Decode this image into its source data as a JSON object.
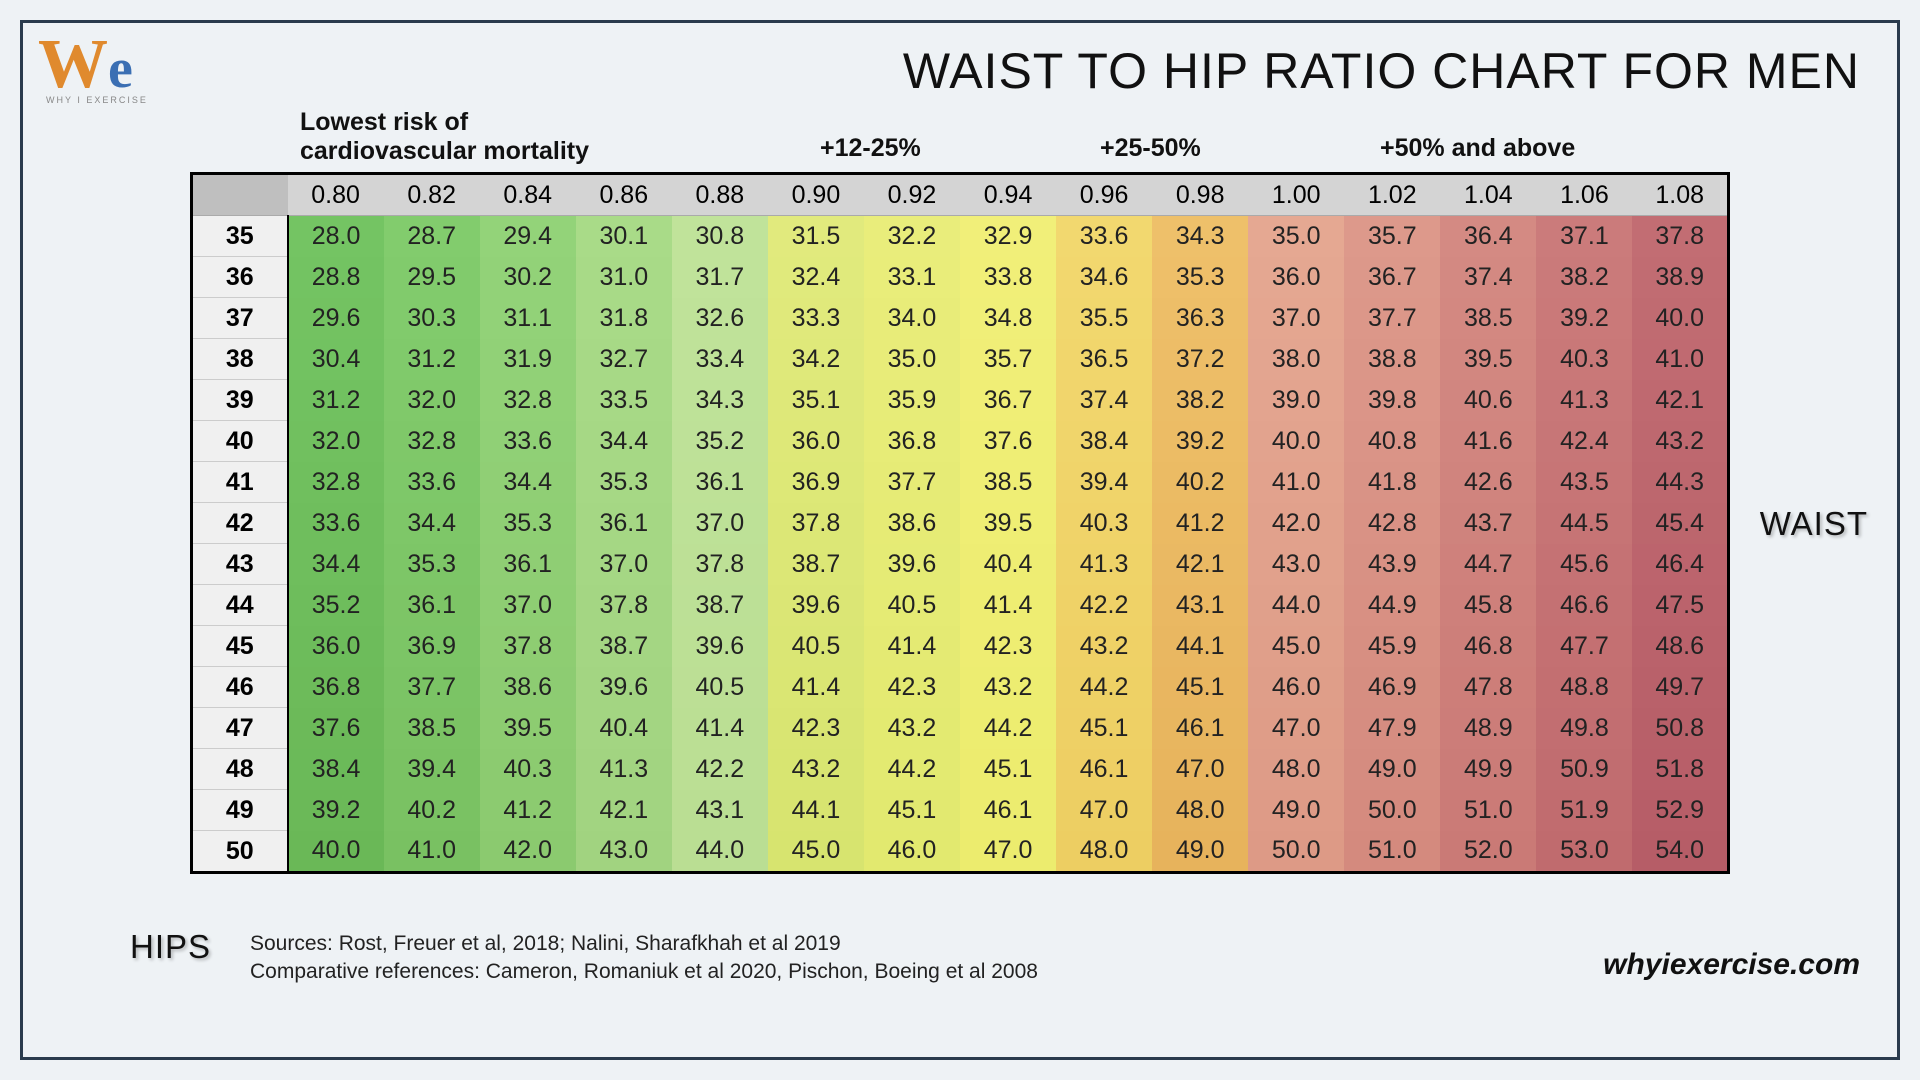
{
  "logo": {
    "w": "W",
    "e": "e",
    "sub": "WHY I EXERCISE"
  },
  "title": "WAIST TO HIP RATIO CHART FOR MEN",
  "risk_labels": {
    "lowest_line1": "Lowest risk of",
    "lowest_line2": "cardiovascular mortality",
    "r12": "+12-25%",
    "r25": "+25-50%",
    "r50": "+50% and above"
  },
  "waist_label": "WAIST",
  "hips_label": "HIPS",
  "sources_line1": "Sources:  Rost, Freuer et al, 2018; Nalini, Sharafkhah et al 2019",
  "sources_line2": "Comparative references:  Cameron, Romaniuk et al 2020, Pischon, Boeing et al 2008",
  "site": "whyiexercise.com",
  "chart": {
    "type": "table-heatmap",
    "ratio_headers": [
      "0.80",
      "0.82",
      "0.84",
      "0.86",
      "0.88",
      "0.90",
      "0.92",
      "0.94",
      "0.96",
      "0.98",
      "1.00",
      "1.02",
      "1.04",
      "1.06",
      "1.08"
    ],
    "hip_headers": [
      "35",
      "36",
      "37",
      "38",
      "39",
      "40",
      "41",
      "42",
      "43",
      "44",
      "45",
      "46",
      "47",
      "48",
      "49",
      "50"
    ],
    "column_colors_top": [
      "#74c463",
      "#82cc6d",
      "#93d379",
      "#a9db88",
      "#c0e39a",
      "#e1ea7d",
      "#e9ed7b",
      "#f1ef79",
      "#f2d86f",
      "#eec06a",
      "#e5a892",
      "#dd998b",
      "#d48a83",
      "#cb7b7b",
      "#c26d73"
    ],
    "column_colors_bottom": [
      "#6ab857",
      "#79c162",
      "#8bca6f",
      "#a1d380",
      "#bade93",
      "#d7e46f",
      "#e2e96f",
      "#ecec6e",
      "#edce62",
      "#e7b35c",
      "#dd9a86",
      "#d48a7e",
      "#ca7a76",
      "#c06b6e",
      "#b65d67"
    ],
    "header_bg": "#d4d4d4",
    "corner_bg": "#bfbfbf",
    "rowheader_bg": "#f0f0f0",
    "font_size": 25,
    "rows": [
      [
        "28.0",
        "28.7",
        "29.4",
        "30.1",
        "30.8",
        "31.5",
        "32.2",
        "32.9",
        "33.6",
        "34.3",
        "35.0",
        "35.7",
        "36.4",
        "37.1",
        "37.8"
      ],
      [
        "28.8",
        "29.5",
        "30.2",
        "31.0",
        "31.7",
        "32.4",
        "33.1",
        "33.8",
        "34.6",
        "35.3",
        "36.0",
        "36.7",
        "37.4",
        "38.2",
        "38.9"
      ],
      [
        "29.6",
        "30.3",
        "31.1",
        "31.8",
        "32.6",
        "33.3",
        "34.0",
        "34.8",
        "35.5",
        "36.3",
        "37.0",
        "37.7",
        "38.5",
        "39.2",
        "40.0"
      ],
      [
        "30.4",
        "31.2",
        "31.9",
        "32.7",
        "33.4",
        "34.2",
        "35.0",
        "35.7",
        "36.5",
        "37.2",
        "38.0",
        "38.8",
        "39.5",
        "40.3",
        "41.0"
      ],
      [
        "31.2",
        "32.0",
        "32.8",
        "33.5",
        "34.3",
        "35.1",
        "35.9",
        "36.7",
        "37.4",
        "38.2",
        "39.0",
        "39.8",
        "40.6",
        "41.3",
        "42.1"
      ],
      [
        "32.0",
        "32.8",
        "33.6",
        "34.4",
        "35.2",
        "36.0",
        "36.8",
        "37.6",
        "38.4",
        "39.2",
        "40.0",
        "40.8",
        "41.6",
        "42.4",
        "43.2"
      ],
      [
        "32.8",
        "33.6",
        "34.4",
        "35.3",
        "36.1",
        "36.9",
        "37.7",
        "38.5",
        "39.4",
        "40.2",
        "41.0",
        "41.8",
        "42.6",
        "43.5",
        "44.3"
      ],
      [
        "33.6",
        "34.4",
        "35.3",
        "36.1",
        "37.0",
        "37.8",
        "38.6",
        "39.5",
        "40.3",
        "41.2",
        "42.0",
        "42.8",
        "43.7",
        "44.5",
        "45.4"
      ],
      [
        "34.4",
        "35.3",
        "36.1",
        "37.0",
        "37.8",
        "38.7",
        "39.6",
        "40.4",
        "41.3",
        "42.1",
        "43.0",
        "43.9",
        "44.7",
        "45.6",
        "46.4"
      ],
      [
        "35.2",
        "36.1",
        "37.0",
        "37.8",
        "38.7",
        "39.6",
        "40.5",
        "41.4",
        "42.2",
        "43.1",
        "44.0",
        "44.9",
        "45.8",
        "46.6",
        "47.5"
      ],
      [
        "36.0",
        "36.9",
        "37.8",
        "38.7",
        "39.6",
        "40.5",
        "41.4",
        "42.3",
        "43.2",
        "44.1",
        "45.0",
        "45.9",
        "46.8",
        "47.7",
        "48.6"
      ],
      [
        "36.8",
        "37.7",
        "38.6",
        "39.6",
        "40.5",
        "41.4",
        "42.3",
        "43.2",
        "44.2",
        "45.1",
        "46.0",
        "46.9",
        "47.8",
        "48.8",
        "49.7"
      ],
      [
        "37.6",
        "38.5",
        "39.5",
        "40.4",
        "41.4",
        "42.3",
        "43.2",
        "44.2",
        "45.1",
        "46.1",
        "47.0",
        "47.9",
        "48.9",
        "49.8",
        "50.8"
      ],
      [
        "38.4",
        "39.4",
        "40.3",
        "41.3",
        "42.2",
        "43.2",
        "44.2",
        "45.1",
        "46.1",
        "47.0",
        "48.0",
        "49.0",
        "49.9",
        "50.9",
        "51.8"
      ],
      [
        "39.2",
        "40.2",
        "41.2",
        "42.1",
        "43.1",
        "44.1",
        "45.1",
        "46.1",
        "47.0",
        "48.0",
        "49.0",
        "50.0",
        "51.0",
        "51.9",
        "52.9"
      ],
      [
        "40.0",
        "41.0",
        "42.0",
        "43.0",
        "44.0",
        "45.0",
        "46.0",
        "47.0",
        "48.0",
        "49.0",
        "50.0",
        "51.0",
        "52.0",
        "53.0",
        "54.0"
      ]
    ]
  }
}
